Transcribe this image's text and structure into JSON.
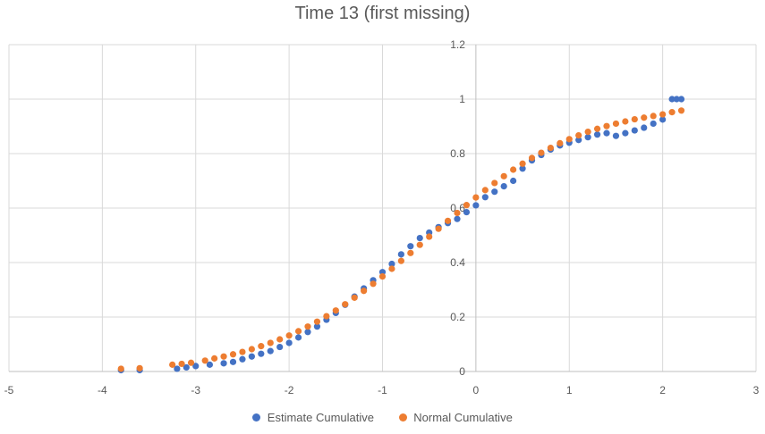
{
  "chart_data": {
    "type": "scatter",
    "title": "Time 13 (first missing)",
    "xlim": [
      -5,
      3
    ],
    "ylim": [
      0,
      1.2
    ],
    "x_ticks": [
      -5,
      -4,
      -3,
      -2,
      -1,
      0,
      1,
      2,
      3
    ],
    "y_ticks": [
      0,
      0.2,
      0.4,
      0.6,
      0.8,
      1,
      1.2
    ],
    "y_tick_labels": [
      "0",
      "0.2",
      "0.4",
      "0.6",
      "0.8",
      "1",
      "1.2"
    ],
    "grid": true,
    "legend_position": "bottom",
    "series": [
      {
        "name": "Estimate Cumulative",
        "color": "#4472C4",
        "points": [
          [
            -3.8,
            0.005
          ],
          [
            -3.6,
            0.005
          ],
          [
            -3.2,
            0.01
          ],
          [
            -3.1,
            0.015
          ],
          [
            -3.0,
            0.02
          ],
          [
            -2.85,
            0.025
          ],
          [
            -2.7,
            0.03
          ],
          [
            -2.6,
            0.035
          ],
          [
            -2.5,
            0.045
          ],
          [
            -2.4,
            0.055
          ],
          [
            -2.3,
            0.065
          ],
          [
            -2.2,
            0.075
          ],
          [
            -2.1,
            0.09
          ],
          [
            -2.0,
            0.105
          ],
          [
            -1.9,
            0.125
          ],
          [
            -1.8,
            0.145
          ],
          [
            -1.7,
            0.165
          ],
          [
            -1.6,
            0.19
          ],
          [
            -1.5,
            0.215
          ],
          [
            -1.4,
            0.245
          ],
          [
            -1.3,
            0.275
          ],
          [
            -1.2,
            0.305
          ],
          [
            -1.1,
            0.335
          ],
          [
            -1.0,
            0.365
          ],
          [
            -0.9,
            0.395
          ],
          [
            -0.8,
            0.43
          ],
          [
            -0.7,
            0.46
          ],
          [
            -0.6,
            0.49
          ],
          [
            -0.5,
            0.51
          ],
          [
            -0.4,
            0.53
          ],
          [
            -0.3,
            0.545
          ],
          [
            -0.2,
            0.56
          ],
          [
            -0.1,
            0.585
          ],
          [
            0.0,
            0.61
          ],
          [
            0.1,
            0.64
          ],
          [
            0.2,
            0.66
          ],
          [
            0.3,
            0.68
          ],
          [
            0.4,
            0.7
          ],
          [
            0.5,
            0.745
          ],
          [
            0.6,
            0.775
          ],
          [
            0.7,
            0.795
          ],
          [
            0.8,
            0.815
          ],
          [
            0.9,
            0.83
          ],
          [
            1.0,
            0.84
          ],
          [
            1.1,
            0.85
          ],
          [
            1.2,
            0.86
          ],
          [
            1.3,
            0.87
          ],
          [
            1.4,
            0.875
          ],
          [
            1.5,
            0.865
          ],
          [
            1.6,
            0.875
          ],
          [
            1.7,
            0.885
          ],
          [
            1.8,
            0.895
          ],
          [
            1.9,
            0.91
          ],
          [
            2.0,
            0.925
          ],
          [
            2.1,
            1.0
          ],
          [
            2.15,
            1.0
          ],
          [
            2.2,
            1.0
          ]
        ]
      },
      {
        "name": "Normal Cumulative",
        "color": "#ED7D31",
        "points": [
          [
            -3.8,
            0.01
          ],
          [
            -3.6,
            0.012
          ],
          [
            -3.25,
            0.025
          ],
          [
            -3.15,
            0.028
          ],
          [
            -3.05,
            0.032
          ],
          [
            -2.9,
            0.04
          ],
          [
            -2.8,
            0.048
          ],
          [
            -2.7,
            0.055
          ],
          [
            -2.6,
            0.063
          ],
          [
            -2.5,
            0.072
          ],
          [
            -2.4,
            0.082
          ],
          [
            -2.3,
            0.093
          ],
          [
            -2.2,
            0.105
          ],
          [
            -2.1,
            0.118
          ],
          [
            -2.0,
            0.132
          ],
          [
            -1.9,
            0.148
          ],
          [
            -1.8,
            0.165
          ],
          [
            -1.7,
            0.183
          ],
          [
            -1.6,
            0.203
          ],
          [
            -1.5,
            0.224
          ],
          [
            -1.4,
            0.247
          ],
          [
            -1.3,
            0.271
          ],
          [
            -1.2,
            0.296
          ],
          [
            -1.1,
            0.322
          ],
          [
            -1.0,
            0.349
          ],
          [
            -0.9,
            0.377
          ],
          [
            -0.8,
            0.406
          ],
          [
            -0.7,
            0.435
          ],
          [
            -0.6,
            0.465
          ],
          [
            -0.5,
            0.495
          ],
          [
            -0.4,
            0.524
          ],
          [
            -0.3,
            0.553
          ],
          [
            -0.2,
            0.582
          ],
          [
            -0.1,
            0.611
          ],
          [
            0.0,
            0.639
          ],
          [
            0.1,
            0.666
          ],
          [
            0.2,
            0.692
          ],
          [
            0.3,
            0.717
          ],
          [
            0.4,
            0.741
          ],
          [
            0.5,
            0.763
          ],
          [
            0.6,
            0.784
          ],
          [
            0.7,
            0.803
          ],
          [
            0.8,
            0.821
          ],
          [
            0.9,
            0.838
          ],
          [
            1.0,
            0.853
          ],
          [
            1.1,
            0.867
          ],
          [
            1.2,
            0.88
          ],
          [
            1.3,
            0.891
          ],
          [
            1.4,
            0.901
          ],
          [
            1.5,
            0.91
          ],
          [
            1.6,
            0.918
          ],
          [
            1.7,
            0.926
          ],
          [
            1.8,
            0.932
          ],
          [
            1.9,
            0.938
          ],
          [
            2.0,
            0.944
          ],
          [
            2.1,
            0.952
          ],
          [
            2.2,
            0.958
          ]
        ]
      }
    ]
  }
}
